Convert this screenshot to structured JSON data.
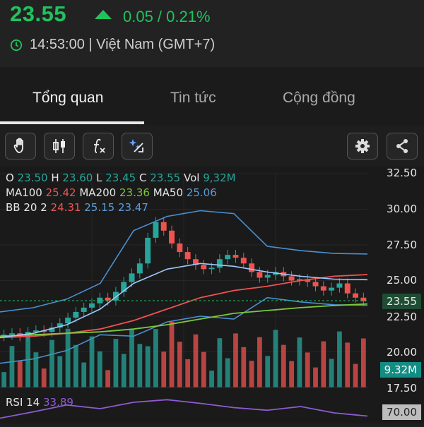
{
  "quote": {
    "price": "23.55",
    "change": "0.05 / 0.21%",
    "time": "14:53:00 | Việt Nam (GMT+7)"
  },
  "colors": {
    "up": "#21c25e",
    "candle_up": "#26a69a",
    "candle_down": "#ef5350",
    "ma100": "#ef5350",
    "ma200": "#7cc73d",
    "ma50": "#5b9bd5",
    "rsi": "#8e5bd1"
  },
  "tabs": [
    {
      "label": "Tổng quan",
      "active": true
    },
    {
      "label": "Tin tức",
      "active": false
    },
    {
      "label": "Cộng đồng",
      "active": false
    }
  ],
  "toolbar": {
    "buttons": [
      "hand-icon",
      "candles-icon",
      "function-icon",
      "magic-icon"
    ],
    "right": [
      "gear-icon",
      "share-icon"
    ]
  },
  "legend": {
    "ohlc": {
      "o_label": "O",
      "o": "23.50",
      "h_label": "H",
      "h": "23.60",
      "l_label": "L",
      "l": "23.45",
      "c_label": "C",
      "c": "23.55",
      "vol_label": "Vol",
      "vol": "9,32M"
    },
    "ma": {
      "ma100_label": "MA100",
      "ma100": "25.42",
      "ma200_label": "MA200",
      "ma200": "23.36",
      "ma50_label": "MA50",
      "ma50": "25.06"
    },
    "bb": {
      "label": "BB 20 2",
      "lower": "24.31",
      "mid": "25.15",
      "upper": "23.47"
    }
  },
  "axis": {
    "price_ticks": [
      "32.50",
      "30.00",
      "27.50",
      "25.00",
      "22.50",
      "20.00",
      "17.50"
    ],
    "last_price": "23.55",
    "last_volume": "9.32M",
    "rsi_level": "70.00"
  },
  "rsi": {
    "label": "RSI 14",
    "value": "33.89"
  },
  "chart_data": {
    "type": "line",
    "ylim": [
      17.5,
      32.5
    ],
    "series": [
      {
        "name": "MA100",
        "values": [
          21.0,
          21.1,
          21.3,
          21.6,
          22.2,
          23.0,
          23.8,
          24.3,
          24.6,
          25.0,
          25.3,
          25.42
        ]
      },
      {
        "name": "MA200",
        "values": [
          21.1,
          21.2,
          21.3,
          21.4,
          21.6,
          21.9,
          22.3,
          22.7,
          22.9,
          23.1,
          23.25,
          23.36
        ]
      },
      {
        "name": "MA50",
        "values": [
          21.0,
          21.3,
          21.9,
          23.0,
          24.8,
          25.8,
          26.2,
          26.0,
          25.6,
          25.3,
          25.1,
          25.06
        ]
      }
    ],
    "closes": [
      21.2,
      21.3,
      21.1,
      21.4,
      21.5,
      21.4,
      21.7,
      22.0,
      22.4,
      22.8,
      23.1,
      23.4,
      23.8,
      23.6,
      24.2,
      24.9,
      25.5,
      26.2,
      28.0,
      29.1,
      28.5,
      27.6,
      27.0,
      26.5,
      26.1,
      25.8,
      25.9,
      26.5,
      26.8,
      26.6,
      26.2,
      25.6,
      25.2,
      25.4,
      25.6,
      25.3,
      25.0,
      25.1,
      24.9,
      24.6,
      24.3,
      24.5,
      24.8,
      24.1,
      23.8,
      23.55
    ],
    "rsi_values": [
      30,
      42,
      55,
      48,
      60,
      65,
      58,
      50,
      45,
      52,
      40,
      34
    ]
  }
}
